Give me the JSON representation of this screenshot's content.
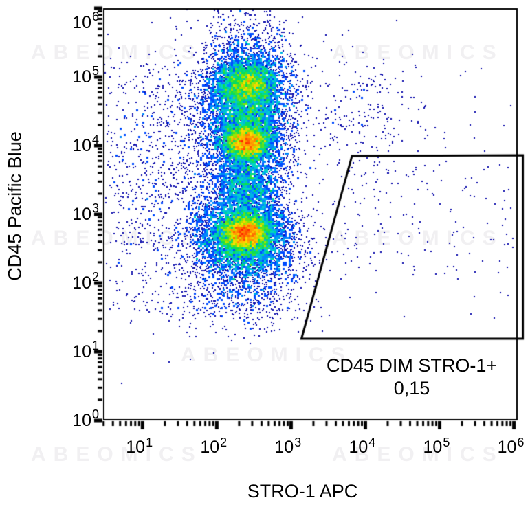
{
  "watermark": {
    "text": "ABEOMICS",
    "color": "#f1f0f2"
  },
  "chart_data": {
    "type": "scatter",
    "subtype": "flow-cytometry-density-dot-plot",
    "title": "",
    "xlabel": "STRO-1 APC",
    "ylabel": "CD45 Pacific Blue",
    "x_scale": "log10",
    "y_scale": "log10",
    "x_range_exp": [
      0.47,
      6.05
    ],
    "y_range_exp": [
      0,
      6
    ],
    "x_tick_exponents": [
      1,
      2,
      3,
      4,
      5,
      6
    ],
    "y_tick_exponents": [
      0,
      1,
      2,
      3,
      4,
      5,
      6
    ],
    "tick_base": "10",
    "grid": "off",
    "dot_color": "#0a0aaa",
    "frame_color": "#000000",
    "gate": {
      "label": "CD45 DIM STRO-1+",
      "percent_label": "0,15",
      "line_color": "#000000",
      "vertices_exp": [
        [
          3.82,
          3.85
        ],
        [
          6.12,
          3.86
        ],
        [
          6.12,
          1.19
        ],
        [
          3.14,
          1.19
        ]
      ]
    },
    "populations": [
      {
        "name": "cd45pos-body",
        "dist": "gaussian",
        "center": [
          2.4,
          4.5
        ],
        "sigma": [
          0.3,
          0.55
        ],
        "count": 6500
      },
      {
        "name": "cd45pos-upper-core",
        "dist": "gaussian",
        "center": [
          2.42,
          4.9
        ],
        "sigma": [
          0.2,
          0.16
        ],
        "count": 2100
      },
      {
        "name": "cd45pos-mid-core",
        "dist": "gaussian",
        "center": [
          2.4,
          4.05
        ],
        "sigma": [
          0.16,
          0.12
        ],
        "count": 3000
      },
      {
        "name": "inter-population-bridge",
        "dist": "gaussian",
        "center": [
          2.4,
          3.4
        ],
        "sigma": [
          0.24,
          0.25
        ],
        "count": 1700
      },
      {
        "name": "cd45dim-core",
        "dist": "gaussian",
        "center": [
          2.38,
          2.73
        ],
        "sigma": [
          0.15,
          0.12
        ],
        "count": 2900
      },
      {
        "name": "cd45dim-body",
        "dist": "gaussian",
        "center": [
          2.37,
          2.67
        ],
        "sigma": [
          0.33,
          0.28
        ],
        "count": 4800
      },
      {
        "name": "cd45dim-tail",
        "dist": "gaussian",
        "center": [
          2.33,
          2.12
        ],
        "sigma": [
          0.42,
          0.35
        ],
        "count": 800
      },
      {
        "name": "left-scatter",
        "dist": "gaussian",
        "center": [
          1.44,
          3.62
        ],
        "sigma": [
          0.6,
          0.9
        ],
        "count": 800
      },
      {
        "name": "left-uniform",
        "dist": "uniform",
        "x_exp": [
          0.55,
          1.85
        ],
        "y_exp": [
          1.55,
          5.2
        ],
        "count": 350
      },
      {
        "name": "bottom-scatter",
        "dist": "gaussian",
        "center": [
          2.32,
          1.7
        ],
        "sigma": [
          0.5,
          0.22
        ],
        "count": 200
      },
      {
        "name": "upper-right-scatter",
        "dist": "gaussian",
        "center": [
          3.85,
          4.35
        ],
        "sigma": [
          0.5,
          0.55
        ],
        "count": 260
      },
      {
        "name": "upper-right-cluster",
        "dist": "gaussian",
        "center": [
          4.0,
          4.87
        ],
        "sigma": [
          0.14,
          0.1
        ],
        "count": 18
      },
      {
        "name": "gate-scatter",
        "dist": "uniform",
        "x_exp": [
          3.2,
          6.0
        ],
        "y_exp": [
          2.1,
          3.8
        ],
        "count": 120
      },
      {
        "name": "far-right-sparse",
        "dist": "uniform",
        "x_exp": [
          4.0,
          6.03
        ],
        "y_exp": [
          1.3,
          5.1
        ],
        "count": 50
      }
    ],
    "colormap": [
      [
        0.0,
        10,
        10,
        170
      ],
      [
        0.2,
        0,
        40,
        255
      ],
      [
        0.38,
        0,
        130,
        255
      ],
      [
        0.52,
        0,
        210,
        210
      ],
      [
        0.64,
        0,
        220,
        90
      ],
      [
        0.74,
        140,
        230,
        0
      ],
      [
        0.82,
        255,
        220,
        0
      ],
      [
        0.9,
        255,
        140,
        0
      ],
      [
        1.0,
        255,
        30,
        0
      ]
    ]
  }
}
